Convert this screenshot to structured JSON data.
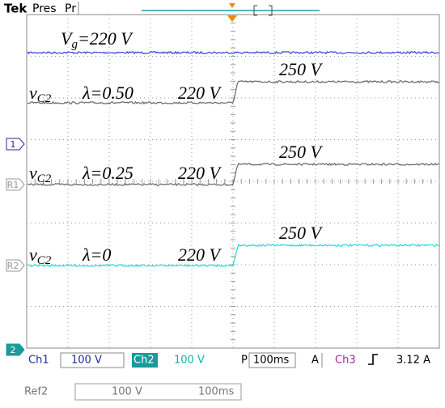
{
  "header": {
    "brand": "Tek",
    "status": "Pres",
    "status2": "Pr"
  },
  "markers": [
    "1",
    "R1",
    "R2",
    "2"
  ],
  "annotations": {
    "vg": {
      "symbol": "V",
      "subscript": "g",
      "text": "=220 V"
    },
    "traces": [
      {
        "symbol": "v",
        "subscript": "C2",
        "lambda": "λ=0.50",
        "before": "220 V",
        "after": "250 V"
      },
      {
        "symbol": "v",
        "subscript": "C2",
        "lambda": "λ=0.25",
        "before": "220 V",
        "after": "250 V"
      },
      {
        "symbol": "v",
        "subscript": "C2",
        "lambda": "λ=0",
        "before": "220 V",
        "after": "250 V"
      }
    ]
  },
  "status_bar": {
    "ch1": "Ch1",
    "ch1_scale": "100 V",
    "ch2": "Ch2",
    "ch2_scale": "100 V",
    "mode": "P",
    "timebase": "100ms",
    "trigger": "A",
    "trigger_source": "Ch3",
    "trigger_level": "3.12 A"
  },
  "ref_bar": {
    "name": "Ref2",
    "scale": "100 V",
    "timebase": "100ms"
  }
}
